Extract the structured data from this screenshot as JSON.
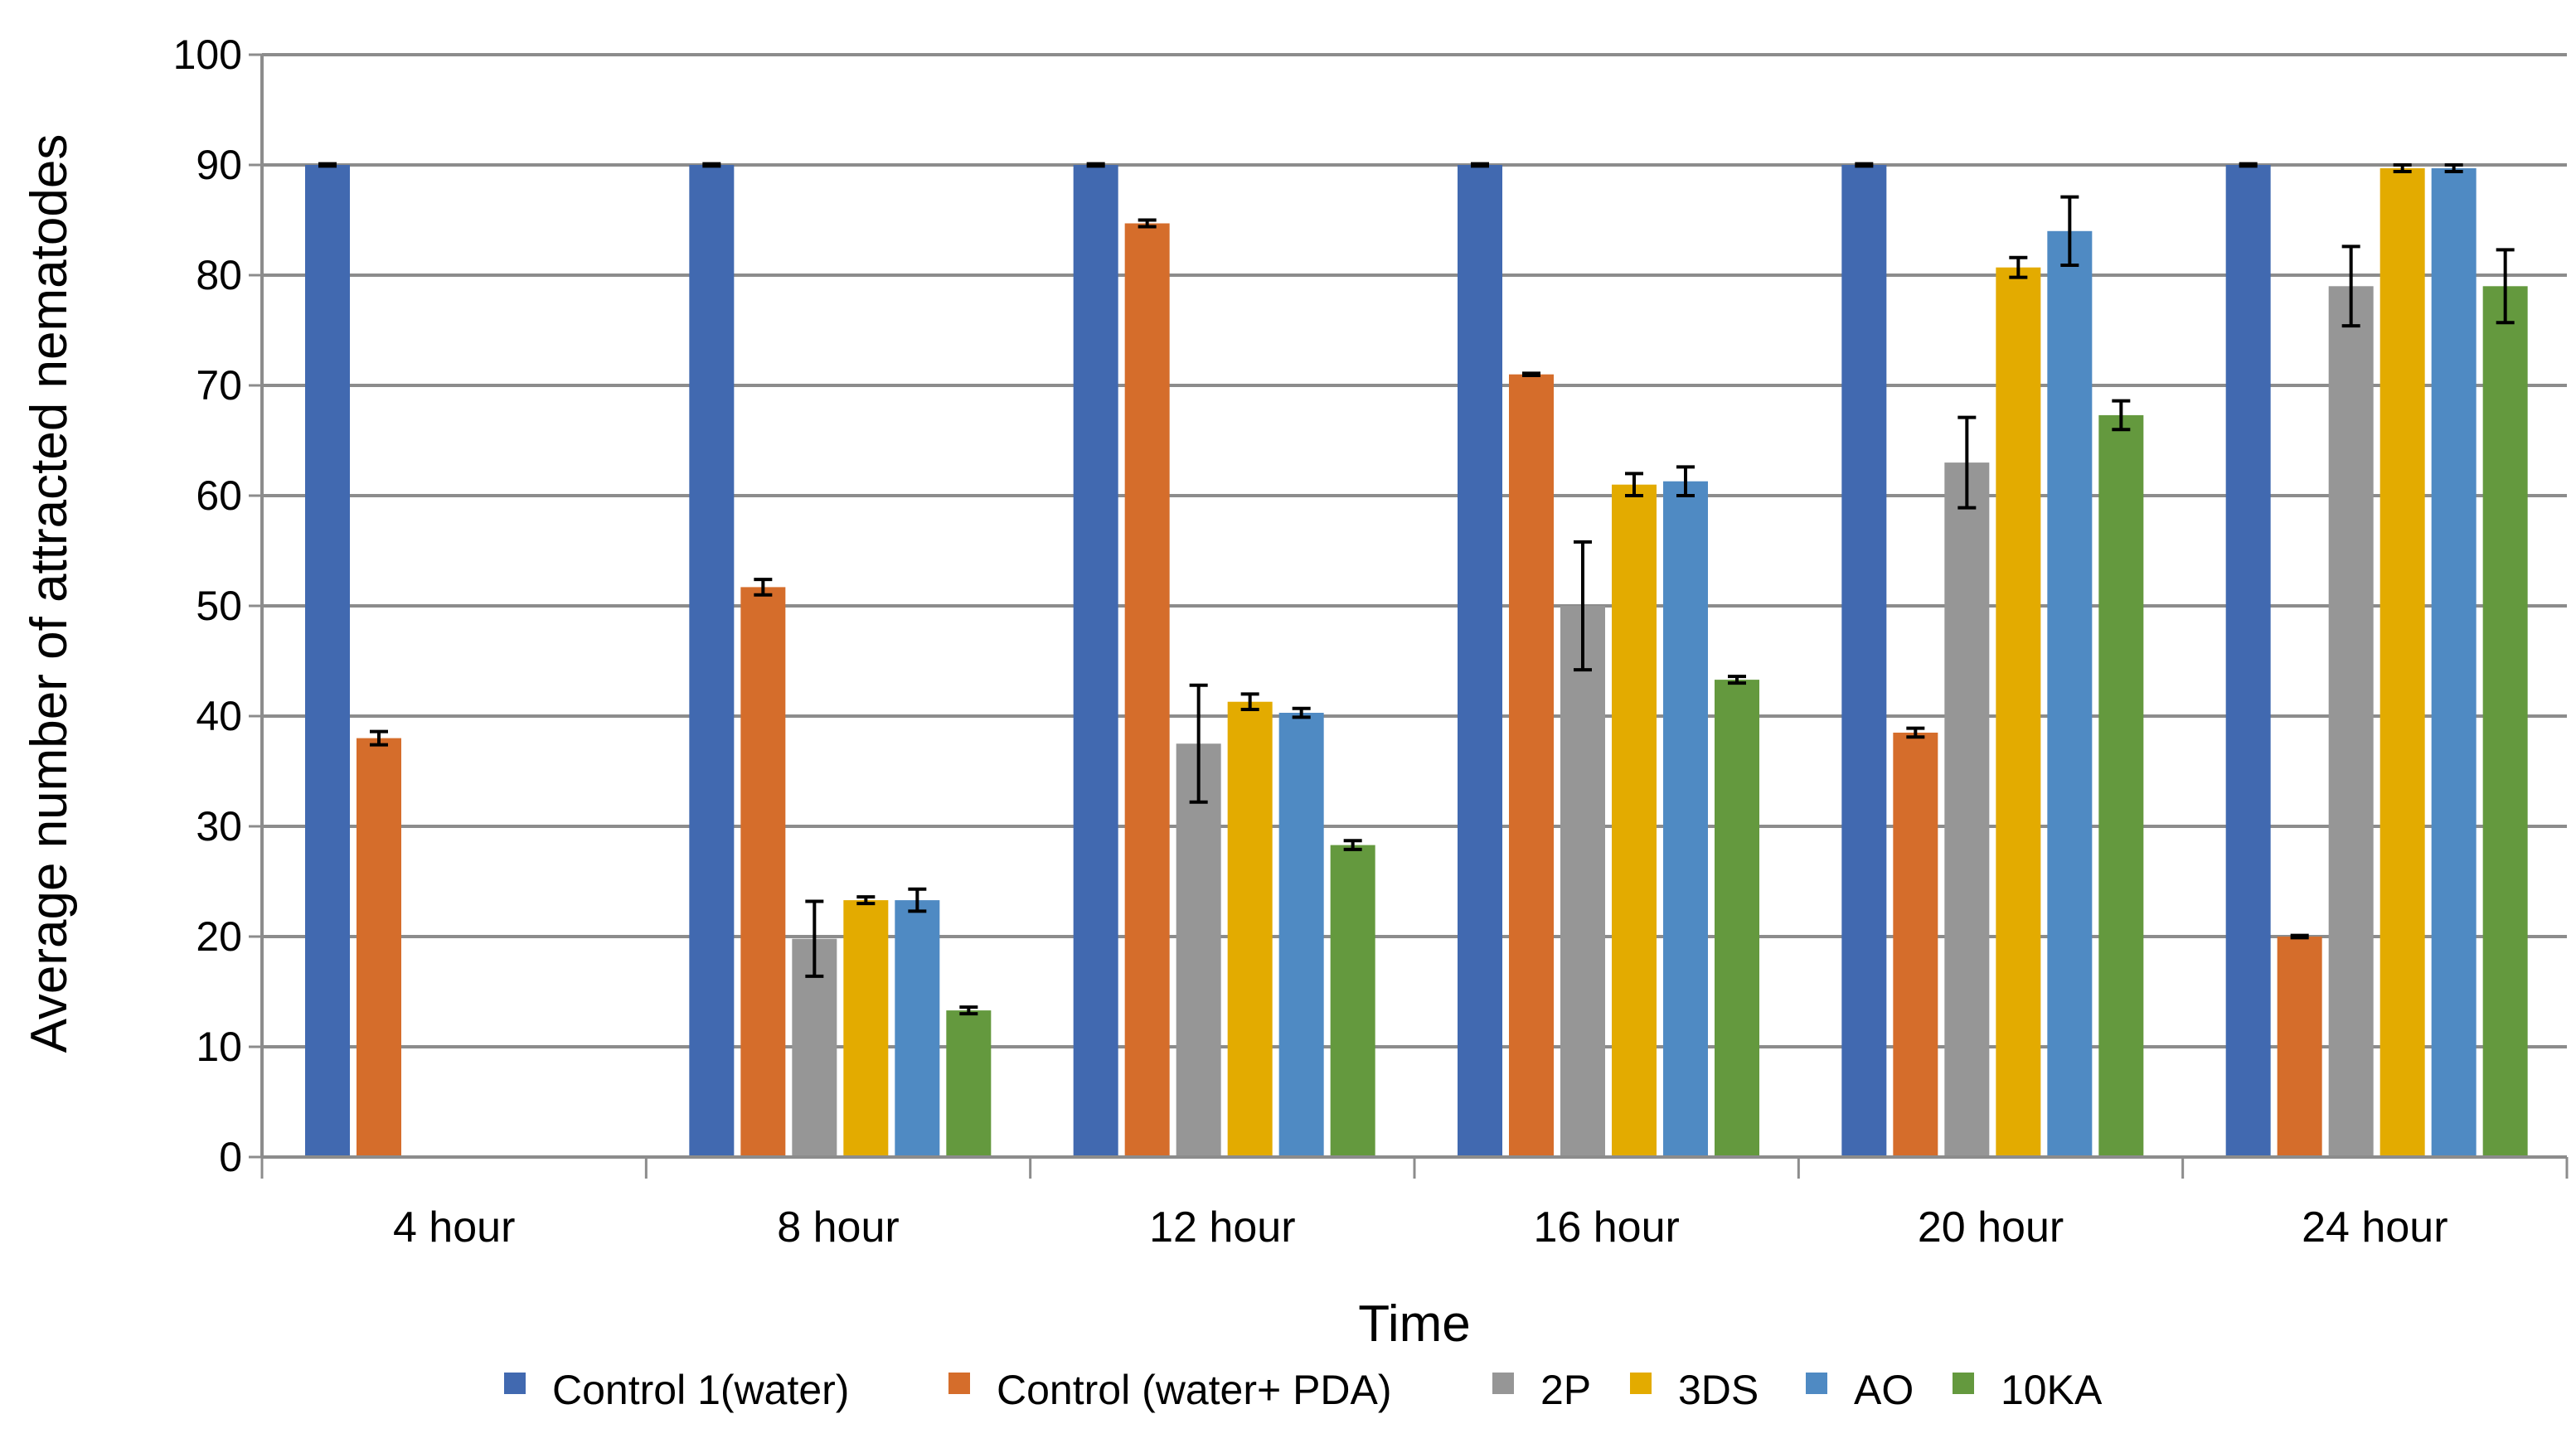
{
  "chart_data": {
    "type": "bar",
    "title": "",
    "xlabel": "Time",
    "ylabel": "Average number of attracted nematodes",
    "ylim": [
      0,
      100
    ],
    "yticks": [
      0,
      10,
      20,
      30,
      40,
      50,
      60,
      70,
      80,
      90,
      100
    ],
    "grid": true,
    "legend_position": "bottom",
    "categories": [
      "4 hour",
      "8 hour",
      "12 hour",
      "16 hour",
      "20 hour",
      "24 hour"
    ],
    "series": [
      {
        "name": "Control 1(water)",
        "color": "#4169b0",
        "values": [
          90,
          90,
          90,
          90,
          90,
          90
        ],
        "errors": [
          0.1,
          0.1,
          0.1,
          0.1,
          0.1,
          0.1
        ]
      },
      {
        "name": "Control (water+ PDA)",
        "color": "#d56d2b",
        "values": [
          38,
          51.7,
          84.7,
          71,
          38.5,
          20
        ],
        "errors": [
          0.6,
          0.7,
          0.3,
          0.1,
          0.4,
          0.1
        ]
      },
      {
        "name": "2P",
        "color": "#969696",
        "values": [
          0,
          19.8,
          37.5,
          50,
          63,
          79
        ],
        "errors": [
          0,
          3.4,
          5.3,
          5.8,
          4.1,
          3.6
        ]
      },
      {
        "name": "3DS",
        "color": "#e3ab00",
        "values": [
          0,
          23.3,
          41.3,
          61,
          80.7,
          89.7
        ],
        "errors": [
          0,
          0.3,
          0.7,
          1.0,
          0.9,
          0.3
        ]
      },
      {
        "name": "AO",
        "color": "#4f8ac3",
        "values": [
          0,
          23.3,
          40.3,
          61.3,
          84,
          89.7
        ],
        "errors": [
          0,
          1.0,
          0.4,
          1.3,
          3.1,
          0.3
        ]
      },
      {
        "name": "10KA",
        "color": "#64993e",
        "values": [
          0,
          13.3,
          28.3,
          43.3,
          67.3,
          79
        ],
        "errors": [
          0,
          0.3,
          0.4,
          0.3,
          1.3,
          3.3
        ]
      }
    ]
  }
}
